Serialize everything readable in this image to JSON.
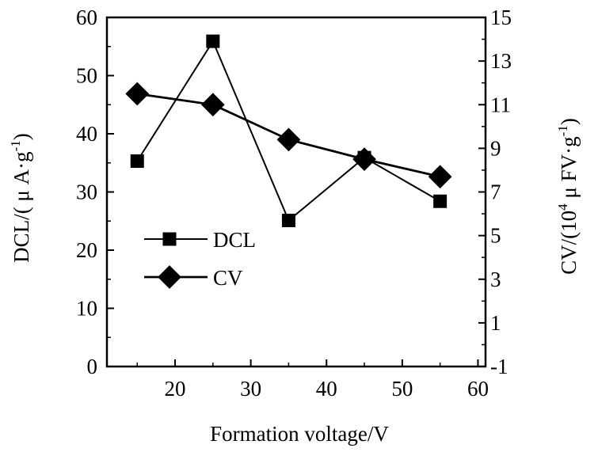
{
  "chart_data": {
    "type": "line",
    "title": "",
    "xlabel": "Formation voltage/V",
    "ylabel_left": {
      "base": "DCL/( μ A·g",
      "sup": "-1",
      "tail": ")"
    },
    "ylabel_right": {
      "base": "CV/(10",
      "sup1": "4",
      "mid": " μ FV·g",
      "sup2": "-1",
      "tail": ")"
    },
    "x_ticks": [
      "20",
      "30",
      "40",
      "50",
      "60"
    ],
    "x_tick_values": [
      20,
      30,
      40,
      50,
      60
    ],
    "xlim": [
      11,
      61
    ],
    "left_ticks": [
      "0",
      "10",
      "20",
      "30",
      "40",
      "50",
      "60"
    ],
    "left_tick_values": [
      0,
      10,
      20,
      30,
      40,
      50,
      60
    ],
    "ylim_left": [
      0,
      60
    ],
    "right_ticks": [
      "-1",
      "1",
      "3",
      "5",
      "7",
      "9",
      "11",
      "13",
      "15"
    ],
    "right_tick_values": [
      -1,
      1,
      3,
      5,
      7,
      9,
      11,
      13,
      15
    ],
    "ylim_right": [
      -1,
      15
    ],
    "grid": false,
    "legend_position": "center-left",
    "series": [
      {
        "name": "DCL",
        "axis": "left",
        "marker": "square",
        "x": [
          15,
          25,
          35,
          45,
          55
        ],
        "y": [
          35.3,
          55.9,
          25.1,
          35.9,
          28.4
        ]
      },
      {
        "name": "CV",
        "axis": "right",
        "marker": "diamond",
        "x": [
          15,
          25,
          35,
          45,
          55
        ],
        "y": [
          11.5,
          11.0,
          9.4,
          8.5,
          7.7
        ]
      }
    ]
  }
}
